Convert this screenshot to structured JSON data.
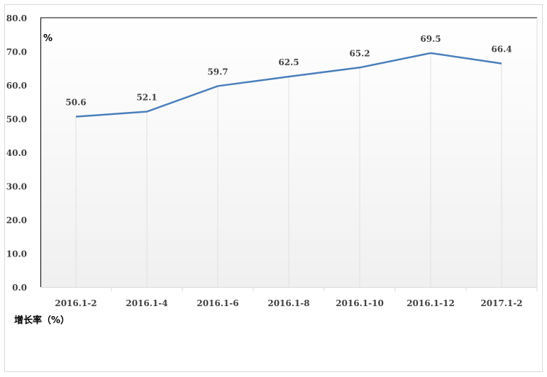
{
  "chart_data": {
    "type": "line",
    "categories": [
      "2016.1-2",
      "2016.1-4",
      "2016.1-6",
      "2016.1-8",
      "2016.1-10",
      "2016.1-12",
      "2017.1-2"
    ],
    "series": [
      {
        "name": "增长率（%）",
        "values": [
          50.6,
          52.1,
          59.7,
          62.5,
          65.2,
          69.5,
          66.4
        ],
        "color": "#4a7ebb"
      }
    ],
    "data_labels": [
      "50.6",
      "52.1",
      "59.7",
      "62.5",
      "65.2",
      "69.5",
      "66.4"
    ],
    "ylim": [
      0,
      80
    ],
    "yticks": [
      "0.0",
      "10.0",
      "20.0",
      "30.0",
      "40.0",
      "50.0",
      "60.0",
      "70.0",
      "80.0"
    ],
    "unit_label": "%",
    "legend": "bottom-left",
    "grid": "vertical"
  }
}
